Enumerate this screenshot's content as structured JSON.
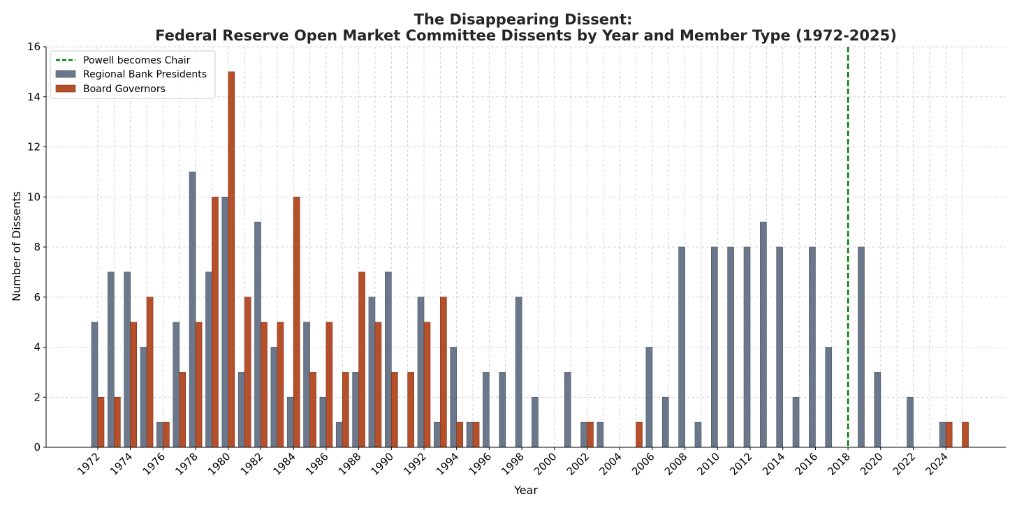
{
  "chart_data": {
    "type": "bar",
    "title": "The Disappearing Dissent:",
    "subtitle": "Federal Reserve Open Market Committee Dissents by Year and Member Type (1972-2025)",
    "xlabel": "Year",
    "ylabel": "Number of Dissents",
    "ylim": [
      0,
      16
    ],
    "yticks": [
      0,
      2,
      4,
      6,
      8,
      10,
      12,
      14,
      16
    ],
    "xticks": [
      1972,
      1974,
      1976,
      1978,
      1980,
      1982,
      1984,
      1986,
      1988,
      1990,
      1992,
      1994,
      1996,
      1998,
      2000,
      2002,
      2004,
      2006,
      2008,
      2010,
      2012,
      2014,
      2016,
      2018,
      2020,
      2022,
      2024
    ],
    "grid": true,
    "legend_position": "top-left",
    "years": [
      1972,
      1973,
      1974,
      1975,
      1976,
      1977,
      1978,
      1979,
      1980,
      1981,
      1982,
      1983,
      1984,
      1985,
      1986,
      1987,
      1988,
      1989,
      1990,
      1991,
      1992,
      1993,
      1994,
      1995,
      1996,
      1997,
      1998,
      1999,
      2000,
      2001,
      2002,
      2003,
      2004,
      2005,
      2006,
      2007,
      2008,
      2009,
      2010,
      2011,
      2012,
      2013,
      2014,
      2015,
      2016,
      2017,
      2018,
      2019,
      2020,
      2021,
      2022,
      2023,
      2024,
      2025
    ],
    "series": [
      {
        "name": "Regional Bank Presidents",
        "color": "#6b778a",
        "values": [
          5,
          7,
          7,
          4,
          1,
          5,
          11,
          7,
          10,
          3,
          9,
          4,
          2,
          5,
          2,
          1,
          3,
          6,
          7,
          0,
          6,
          1,
          4,
          1,
          3,
          3,
          6,
          2,
          0,
          3,
          1,
          1,
          0,
          0,
          4,
          2,
          8,
          1,
          8,
          8,
          8,
          9,
          8,
          2,
          8,
          4,
          0,
          8,
          3,
          0,
          2,
          0,
          1,
          0
        ]
      },
      {
        "name": "Board Governors",
        "color": "#b5502b",
        "values": [
          2,
          2,
          5,
          6,
          1,
          3,
          5,
          10,
          15,
          6,
          5,
          5,
          10,
          3,
          5,
          3,
          7,
          5,
          3,
          3,
          5,
          6,
          1,
          1,
          0,
          0,
          0,
          0,
          0,
          0,
          1,
          0,
          0,
          1,
          0,
          0,
          0,
          0,
          0,
          0,
          0,
          0,
          0,
          0,
          0,
          0,
          0,
          0,
          0,
          0,
          0,
          0,
          1,
          1
        ]
      }
    ],
    "annotations": [
      {
        "type": "vline",
        "x": 2018,
        "label": "Powell becomes Chair",
        "color": "#007a00",
        "style": "dashed"
      }
    ]
  }
}
